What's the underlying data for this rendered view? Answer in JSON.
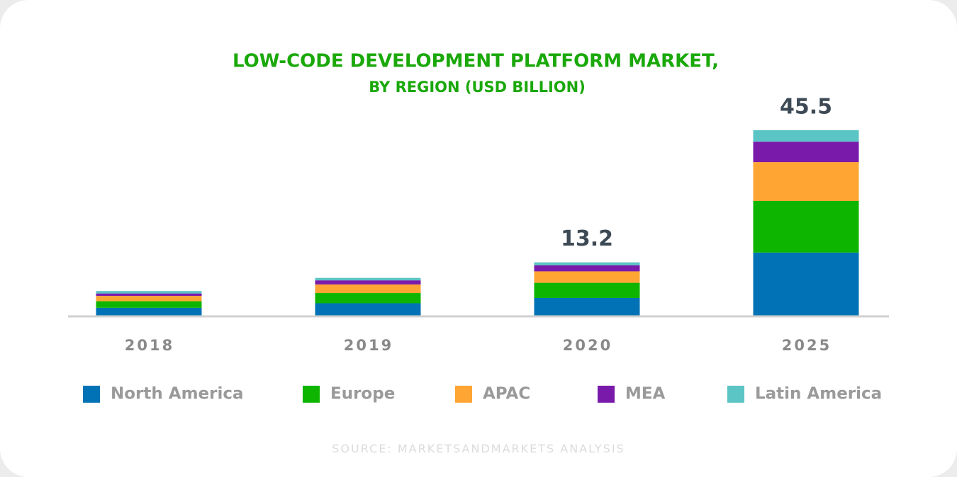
{
  "chart_data": {
    "type": "stacked_bar",
    "title": "LOW-CODE DEVELOPMENT PLATFORM MARKET,",
    "subtitle": "BY REGION (USD BILLION)",
    "categories": [
      "2018",
      "2019",
      "2020",
      "2025"
    ],
    "series": [
      {
        "name": "North America",
        "color": "#0072b5",
        "values": [
          2.1,
          3.2,
          4.5,
          15.6
        ]
      },
      {
        "name": "Europe",
        "color": "#0db500",
        "values": [
          1.6,
          2.5,
          3.7,
          12.6
        ]
      },
      {
        "name": "APAC",
        "color": "#ffa533",
        "values": [
          1.3,
          2.1,
          2.8,
          9.5
        ]
      },
      {
        "name": "MEA",
        "color": "#7a1aab",
        "values": [
          0.6,
          1.0,
          1.5,
          5.0
        ]
      },
      {
        "name": "Latin America",
        "color": "#5bc4c4",
        "values": [
          0.6,
          0.6,
          0.7,
          2.8
        ]
      }
    ],
    "totals": [
      null,
      null,
      13.2,
      45.5
    ],
    "source": "SOURCE: MARKETSANDMARKETS ANALYSIS"
  }
}
